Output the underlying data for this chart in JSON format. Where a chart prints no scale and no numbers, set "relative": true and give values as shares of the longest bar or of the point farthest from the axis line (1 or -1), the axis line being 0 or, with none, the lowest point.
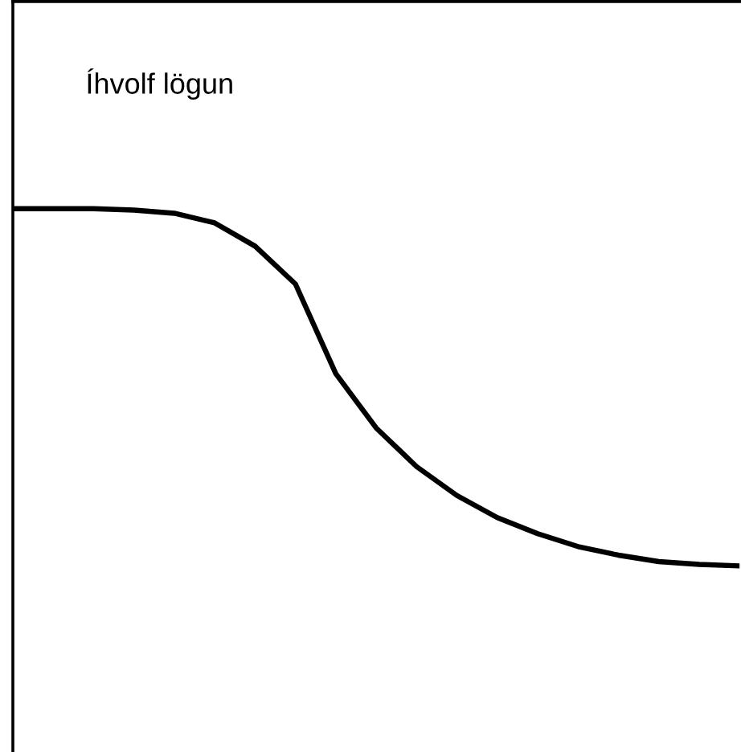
{
  "chart_data": {
    "type": "line",
    "title": "Íhvolf lögun",
    "relative": true,
    "categories": [
      null,
      null,
      null,
      null,
      null,
      null,
      null,
      null,
      null,
      null,
      null,
      null,
      null,
      null,
      null,
      null,
      null,
      null,
      null
    ],
    "series": [
      {
        "color": "#000000",
        "values": [
          1,
          1,
          1,
          0.996,
          0.987,
          0.96,
          0.895,
          0.789,
          0.538,
          0.386,
          0.278,
          0.197,
          0.135,
          0.09,
          0.054,
          0.03,
          0.012,
          0.004,
          0
        ]
      }
    ],
    "grid": false,
    "legend": false,
    "marker": "none",
    "line_style": "solid"
  }
}
